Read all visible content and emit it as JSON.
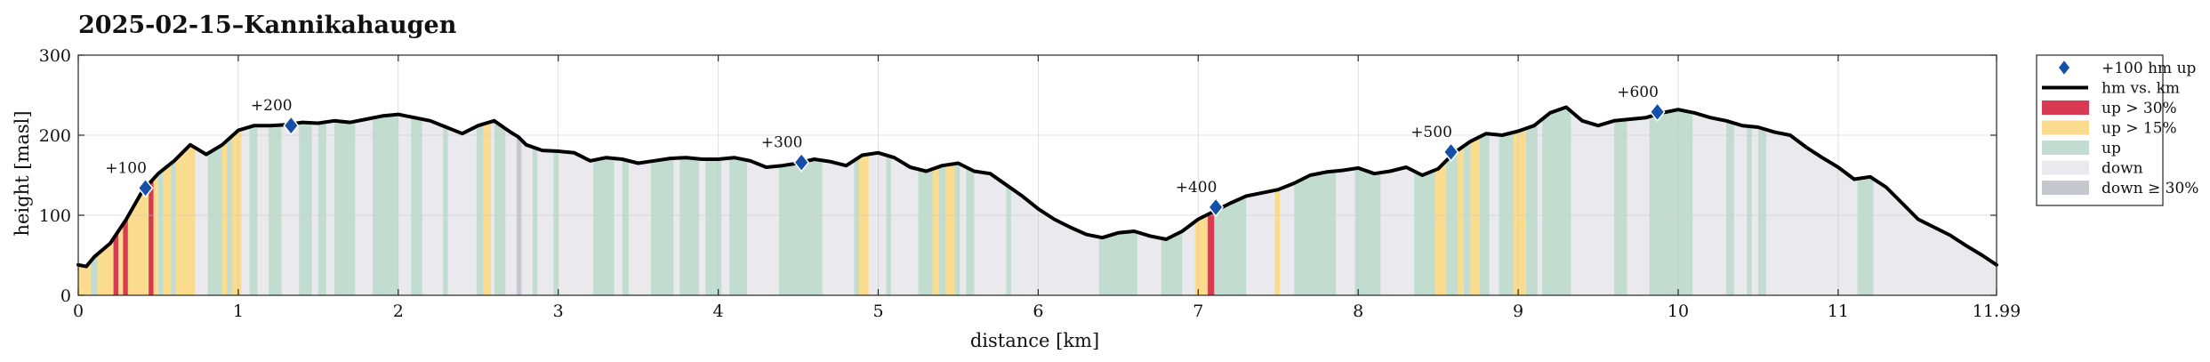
{
  "chart_data": {
    "type": "area",
    "title": "2025-02-15–Kannikahaugen",
    "xlabel": "distance [km]",
    "ylabel": "height [masl]",
    "xlim": [
      0,
      11.99
    ],
    "ylim": [
      0,
      300
    ],
    "xticks": [
      "0",
      "1",
      "2",
      "3",
      "4",
      "5",
      "6",
      "7",
      "8",
      "9",
      "10",
      "11",
      "11.99"
    ],
    "yticks": [
      "0",
      "100",
      "200",
      "300"
    ],
    "grid": true,
    "legend_position": "right",
    "colors": {
      "line": "#000000",
      "up30": "#d83a52",
      "up15": "#fbdc8e",
      "up": "#c2ddd0",
      "down": "#e9e9ee",
      "down30": "#c6c8ce",
      "marker": "#1550a8"
    },
    "legend": [
      {
        "key": "marker",
        "label": "+100 hm up"
      },
      {
        "key": "line",
        "label": "hm vs. km"
      },
      {
        "key": "up30",
        "label": "up > 30%"
      },
      {
        "key": "up15",
        "label": "up > 15%"
      },
      {
        "key": "up",
        "label": "up"
      },
      {
        "key": "down",
        "label": "down"
      },
      {
        "key": "down30",
        "label": "down ≥ 30%"
      }
    ],
    "profile": {
      "x": [
        0,
        0.05,
        0.1,
        0.2,
        0.3,
        0.4,
        0.5,
        0.6,
        0.7,
        0.75,
        0.8,
        0.9,
        1.0,
        1.1,
        1.2,
        1.3,
        1.4,
        1.5,
        1.6,
        1.7,
        1.8,
        1.9,
        2.0,
        2.05,
        2.1,
        2.2,
        2.3,
        2.4,
        2.5,
        2.6,
        2.7,
        2.75,
        2.8,
        2.9,
        3.0,
        3.1,
        3.2,
        3.3,
        3.4,
        3.5,
        3.6,
        3.7,
        3.8,
        3.9,
        4.0,
        4.1,
        4.2,
        4.3,
        4.4,
        4.5,
        4.6,
        4.7,
        4.8,
        4.9,
        5.0,
        5.1,
        5.2,
        5.3,
        5.4,
        5.5,
        5.6,
        5.7,
        5.8,
        5.9,
        6.0,
        6.1,
        6.2,
        6.3,
        6.4,
        6.5,
        6.6,
        6.7,
        6.8,
        6.9,
        7.0,
        7.1,
        7.2,
        7.3,
        7.4,
        7.5,
        7.6,
        7.7,
        7.8,
        7.9,
        8.0,
        8.1,
        8.2,
        8.3,
        8.4,
        8.5,
        8.6,
        8.7,
        8.8,
        8.9,
        9.0,
        9.1,
        9.2,
        9.3,
        9.4,
        9.5,
        9.6,
        9.7,
        9.8,
        9.9,
        10.0,
        10.1,
        10.2,
        10.3,
        10.4,
        10.5,
        10.6,
        10.7,
        10.8,
        10.9,
        11.0,
        11.1,
        11.2,
        11.3,
        11.4,
        11.5,
        11.6,
        11.7,
        11.8,
        11.9,
        11.99
      ],
      "y": [
        38,
        36,
        48,
        65,
        95,
        130,
        152,
        168,
        188,
        182,
        176,
        188,
        206,
        212,
        212,
        213,
        216,
        215,
        218,
        216,
        220,
        224,
        226,
        224,
        222,
        218,
        210,
        202,
        212,
        218,
        204,
        198,
        188,
        181,
        180,
        178,
        168,
        172,
        170,
        165,
        168,
        171,
        172,
        170,
        170,
        172,
        168,
        160,
        162,
        165,
        170,
        167,
        162,
        175,
        178,
        172,
        160,
        155,
        162,
        165,
        155,
        152,
        138,
        124,
        108,
        95,
        85,
        76,
        72,
        78,
        80,
        74,
        70,
        80,
        95,
        105,
        115,
        124,
        128,
        132,
        140,
        150,
        154,
        156,
        159,
        152,
        155,
        160,
        150,
        158,
        178,
        192,
        202,
        200,
        205,
        212,
        228,
        235,
        218,
        212,
        218,
        220,
        222,
        228,
        232,
        228,
        222,
        218,
        212,
        210,
        204,
        200,
        185,
        172,
        160,
        145,
        148,
        135,
        115,
        95,
        85,
        75,
        62,
        50,
        38
      ]
    },
    "markers": [
      {
        "label": "+100",
        "x": 0.42,
        "y": 134
      },
      {
        "label": "+200",
        "x": 1.33,
        "y": 212
      },
      {
        "label": "+300",
        "x": 4.52,
        "y": 166
      },
      {
        "label": "+400",
        "x": 7.11,
        "y": 110
      },
      {
        "label": "+500",
        "x": 8.58,
        "y": 179
      },
      {
        "label": "+600",
        "x": 9.87,
        "y": 229
      }
    ],
    "bands": [
      {
        "x0": 0.0,
        "x1": 0.08,
        "cat": "up15"
      },
      {
        "x0": 0.08,
        "x1": 0.12,
        "cat": "up"
      },
      {
        "x0": 0.12,
        "x1": 0.22,
        "cat": "up15"
      },
      {
        "x0": 0.22,
        "x1": 0.25,
        "cat": "up30"
      },
      {
        "x0": 0.25,
        "x1": 0.28,
        "cat": "up15"
      },
      {
        "x0": 0.28,
        "x1": 0.31,
        "cat": "up30"
      },
      {
        "x0": 0.31,
        "x1": 0.44,
        "cat": "up15"
      },
      {
        "x0": 0.44,
        "x1": 0.47,
        "cat": "up30"
      },
      {
        "x0": 0.47,
        "x1": 0.5,
        "cat": "up15"
      },
      {
        "x0": 0.5,
        "x1": 0.53,
        "cat": "up"
      },
      {
        "x0": 0.53,
        "x1": 0.58,
        "cat": "up15"
      },
      {
        "x0": 0.58,
        "x1": 0.61,
        "cat": "up"
      },
      {
        "x0": 0.61,
        "x1": 0.73,
        "cat": "up15"
      },
      {
        "x0": 0.73,
        "x1": 0.81,
        "cat": "down"
      },
      {
        "x0": 0.81,
        "x1": 0.9,
        "cat": "up"
      },
      {
        "x0": 0.9,
        "x1": 0.93,
        "cat": "up15"
      },
      {
        "x0": 0.93,
        "x1": 0.96,
        "cat": "up"
      },
      {
        "x0": 0.96,
        "x1": 1.02,
        "cat": "up15"
      },
      {
        "x0": 1.02,
        "x1": 1.07,
        "cat": "down"
      },
      {
        "x0": 1.07,
        "x1": 1.12,
        "cat": "up"
      },
      {
        "x0": 1.12,
        "x1": 1.19,
        "cat": "down"
      },
      {
        "x0": 1.19,
        "x1": 1.27,
        "cat": "up"
      },
      {
        "x0": 1.27,
        "x1": 1.38,
        "cat": "down"
      },
      {
        "x0": 1.38,
        "x1": 1.46,
        "cat": "up"
      },
      {
        "x0": 1.46,
        "x1": 1.5,
        "cat": "down"
      },
      {
        "x0": 1.5,
        "x1": 1.55,
        "cat": "up"
      },
      {
        "x0": 1.55,
        "x1": 1.6,
        "cat": "down"
      },
      {
        "x0": 1.6,
        "x1": 1.73,
        "cat": "up"
      },
      {
        "x0": 1.73,
        "x1": 1.84,
        "cat": "down"
      },
      {
        "x0": 1.84,
        "x1": 2.0,
        "cat": "up"
      },
      {
        "x0": 2.0,
        "x1": 2.08,
        "cat": "down"
      },
      {
        "x0": 2.08,
        "x1": 2.15,
        "cat": "up"
      },
      {
        "x0": 2.15,
        "x1": 2.28,
        "cat": "down"
      },
      {
        "x0": 2.28,
        "x1": 2.31,
        "cat": "up"
      },
      {
        "x0": 2.31,
        "x1": 2.49,
        "cat": "down"
      },
      {
        "x0": 2.49,
        "x1": 2.53,
        "cat": "up"
      },
      {
        "x0": 2.53,
        "x1": 2.58,
        "cat": "up15"
      },
      {
        "x0": 2.58,
        "x1": 2.6,
        "cat": "down"
      },
      {
        "x0": 2.6,
        "x1": 2.67,
        "cat": "up"
      },
      {
        "x0": 2.67,
        "x1": 2.74,
        "cat": "down"
      },
      {
        "x0": 2.74,
        "x1": 2.77,
        "cat": "down30"
      },
      {
        "x0": 2.77,
        "x1": 2.84,
        "cat": "down"
      },
      {
        "x0": 2.84,
        "x1": 2.87,
        "cat": "up"
      },
      {
        "x0": 2.87,
        "x1": 2.97,
        "cat": "down"
      },
      {
        "x0": 2.97,
        "x1": 3.0,
        "cat": "up"
      },
      {
        "x0": 3.0,
        "x1": 3.22,
        "cat": "down"
      },
      {
        "x0": 3.22,
        "x1": 3.35,
        "cat": "up"
      },
      {
        "x0": 3.35,
        "x1": 3.4,
        "cat": "down"
      },
      {
        "x0": 3.4,
        "x1": 3.44,
        "cat": "up"
      },
      {
        "x0": 3.44,
        "x1": 3.58,
        "cat": "down"
      },
      {
        "x0": 3.58,
        "x1": 3.72,
        "cat": "up"
      },
      {
        "x0": 3.72,
        "x1": 3.76,
        "cat": "down"
      },
      {
        "x0": 3.76,
        "x1": 3.88,
        "cat": "up"
      },
      {
        "x0": 3.88,
        "x1": 3.92,
        "cat": "down"
      },
      {
        "x0": 3.92,
        "x1": 4.02,
        "cat": "up"
      },
      {
        "x0": 4.02,
        "x1": 4.07,
        "cat": "down"
      },
      {
        "x0": 4.07,
        "x1": 4.18,
        "cat": "up"
      },
      {
        "x0": 4.18,
        "x1": 4.38,
        "cat": "down"
      },
      {
        "x0": 4.38,
        "x1": 4.65,
        "cat": "up"
      },
      {
        "x0": 4.65,
        "x1": 4.85,
        "cat": "down"
      },
      {
        "x0": 4.85,
        "x1": 4.88,
        "cat": "up"
      },
      {
        "x0": 4.88,
        "x1": 4.94,
        "cat": "up15"
      },
      {
        "x0": 4.94,
        "x1": 5.05,
        "cat": "down"
      },
      {
        "x0": 5.05,
        "x1": 5.08,
        "cat": "up"
      },
      {
        "x0": 5.08,
        "x1": 5.25,
        "cat": "down"
      },
      {
        "x0": 5.25,
        "x1": 5.34,
        "cat": "up"
      },
      {
        "x0": 5.34,
        "x1": 5.38,
        "cat": "up15"
      },
      {
        "x0": 5.38,
        "x1": 5.42,
        "cat": "up"
      },
      {
        "x0": 5.42,
        "x1": 5.48,
        "cat": "up15"
      },
      {
        "x0": 5.48,
        "x1": 5.51,
        "cat": "up"
      },
      {
        "x0": 5.51,
        "x1": 5.55,
        "cat": "down"
      },
      {
        "x0": 5.55,
        "x1": 5.6,
        "cat": "up"
      },
      {
        "x0": 5.6,
        "x1": 5.8,
        "cat": "down"
      },
      {
        "x0": 5.8,
        "x1": 5.83,
        "cat": "up"
      },
      {
        "x0": 5.83,
        "x1": 6.38,
        "cat": "down"
      },
      {
        "x0": 6.38,
        "x1": 6.62,
        "cat": "up"
      },
      {
        "x0": 6.62,
        "x1": 6.77,
        "cat": "down"
      },
      {
        "x0": 6.77,
        "x1": 6.9,
        "cat": "up"
      },
      {
        "x0": 6.9,
        "x1": 6.98,
        "cat": "down"
      },
      {
        "x0": 6.98,
        "x1": 7.06,
        "cat": "up15"
      },
      {
        "x0": 7.06,
        "x1": 7.1,
        "cat": "up30"
      },
      {
        "x0": 7.1,
        "x1": 7.3,
        "cat": "up"
      },
      {
        "x0": 7.3,
        "x1": 7.48,
        "cat": "down"
      },
      {
        "x0": 7.48,
        "x1": 7.51,
        "cat": "up15"
      },
      {
        "x0": 7.51,
        "x1": 7.6,
        "cat": "down"
      },
      {
        "x0": 7.6,
        "x1": 7.86,
        "cat": "up"
      },
      {
        "x0": 7.86,
        "x1": 7.98,
        "cat": "down"
      },
      {
        "x0": 7.98,
        "x1": 8.14,
        "cat": "up"
      },
      {
        "x0": 8.14,
        "x1": 8.35,
        "cat": "down"
      },
      {
        "x0": 8.35,
        "x1": 8.48,
        "cat": "up"
      },
      {
        "x0": 8.48,
        "x1": 8.55,
        "cat": "up15"
      },
      {
        "x0": 8.55,
        "x1": 8.62,
        "cat": "up"
      },
      {
        "x0": 8.62,
        "x1": 8.66,
        "cat": "up15"
      },
      {
        "x0": 8.66,
        "x1": 8.7,
        "cat": "up"
      },
      {
        "x0": 8.7,
        "x1": 8.76,
        "cat": "up15"
      },
      {
        "x0": 8.76,
        "x1": 8.82,
        "cat": "up"
      },
      {
        "x0": 8.82,
        "x1": 8.88,
        "cat": "down"
      },
      {
        "x0": 8.88,
        "x1": 8.97,
        "cat": "up"
      },
      {
        "x0": 8.97,
        "x1": 9.05,
        "cat": "up15"
      },
      {
        "x0": 9.05,
        "x1": 9.12,
        "cat": "up"
      },
      {
        "x0": 9.12,
        "x1": 9.15,
        "cat": "down"
      },
      {
        "x0": 9.15,
        "x1": 9.33,
        "cat": "up"
      },
      {
        "x0": 9.33,
        "x1": 9.6,
        "cat": "down"
      },
      {
        "x0": 9.6,
        "x1": 9.68,
        "cat": "up"
      },
      {
        "x0": 9.68,
        "x1": 9.82,
        "cat": "down"
      },
      {
        "x0": 9.82,
        "x1": 10.09,
        "cat": "up"
      },
      {
        "x0": 10.09,
        "x1": 10.3,
        "cat": "down"
      },
      {
        "x0": 10.3,
        "x1": 10.35,
        "cat": "up"
      },
      {
        "x0": 10.35,
        "x1": 10.43,
        "cat": "down"
      },
      {
        "x0": 10.43,
        "x1": 10.46,
        "cat": "up"
      },
      {
        "x0": 10.46,
        "x1": 10.5,
        "cat": "down"
      },
      {
        "x0": 10.5,
        "x1": 10.55,
        "cat": "up"
      },
      {
        "x0": 10.55,
        "x1": 11.12,
        "cat": "down"
      },
      {
        "x0": 11.12,
        "x1": 11.22,
        "cat": "up"
      },
      {
        "x0": 11.22,
        "x1": 11.99,
        "cat": "down"
      }
    ]
  }
}
